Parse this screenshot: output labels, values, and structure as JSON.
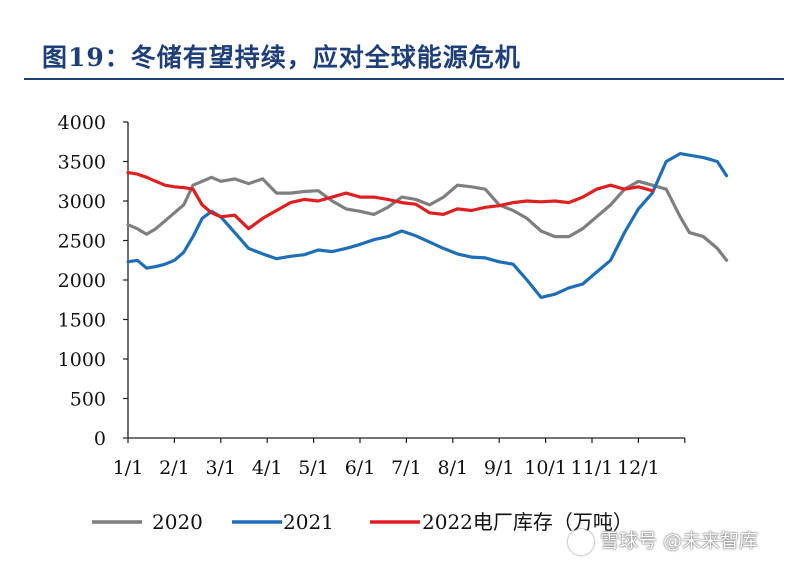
{
  "title": "图19：冬储有望持续，应对全球能源危机",
  "watermark": "雪球号 @未来智库",
  "chart_data": {
    "type": "line",
    "title": "图19：冬储有望持续，应对全球能源危机",
    "xlabel": "",
    "ylabel": "",
    "ylim": [
      0,
      4000
    ],
    "yticks": [
      0,
      500,
      1000,
      1500,
      2000,
      2500,
      3000,
      3500,
      4000
    ],
    "xticks": [
      "1/1",
      "2/1",
      "3/1",
      "4/1",
      "5/1",
      "6/1",
      "7/1",
      "8/1",
      "9/1",
      "10/1",
      "11/1",
      "12/1"
    ],
    "legend_position": "bottom",
    "grid": false,
    "series": [
      {
        "name": "2020",
        "color": "#7f7f7f",
        "x": [
          0,
          0.2,
          0.4,
          0.6,
          0.8,
          1.0,
          1.2,
          1.4,
          1.6,
          1.8,
          2.0,
          2.3,
          2.6,
          2.9,
          3.2,
          3.5,
          3.8,
          4.1,
          4.4,
          4.7,
          5.0,
          5.3,
          5.6,
          5.9,
          6.2,
          6.5,
          6.8,
          7.1,
          7.4,
          7.7,
          8.0,
          8.3,
          8.6,
          8.9,
          9.2,
          9.5,
          9.8,
          10.1,
          10.4,
          10.7,
          11.0,
          11.3,
          11.6,
          11.9
        ],
        "values": [
          2700,
          2650,
          2580,
          2650,
          2750,
          2850,
          2950,
          3200,
          3250,
          3300,
          3250,
          3280,
          3220,
          3280,
          3100,
          3100,
          3120,
          3130,
          3000,
          2900,
          2870,
          2830,
          2920,
          3050,
          3020,
          2950,
          3050,
          3200,
          3180,
          3150,
          2950,
          2880,
          2780,
          2620,
          2550,
          2550,
          2650,
          2800,
          2950,
          3150,
          3250,
          3200,
          3150,
          2800
        ],
        "tail_x": [
          12.1,
          12.4,
          12.7,
          12.9
        ],
        "tail_values": [
          2600,
          2550,
          2400,
          2250
        ]
      },
      {
        "name": "2021",
        "color": "#1f6fb8",
        "x": [
          0,
          0.2,
          0.4,
          0.6,
          0.8,
          1.0,
          1.2,
          1.4,
          1.6,
          1.8,
          2.0,
          2.3,
          2.6,
          2.9,
          3.2,
          3.5,
          3.8,
          4.1,
          4.4,
          4.7,
          5.0,
          5.3,
          5.6,
          5.9,
          6.2,
          6.5,
          6.8,
          7.1,
          7.4,
          7.7,
          8.0,
          8.3,
          8.6,
          8.9,
          9.2,
          9.5,
          9.8,
          10.1,
          10.4,
          10.7,
          11.0,
          11.3,
          11.6,
          11.9,
          12.1,
          12.4,
          12.7,
          12.9
        ],
        "values": [
          2230,
          2250,
          2150,
          2170,
          2200,
          2250,
          2350,
          2550,
          2780,
          2870,
          2800,
          2600,
          2400,
          2330,
          2270,
          2300,
          2320,
          2380,
          2360,
          2400,
          2450,
          2510,
          2550,
          2620,
          2560,
          2480,
          2400,
          2330,
          2290,
          2280,
          2230,
          2200,
          2000,
          1780,
          1820,
          1900,
          1950,
          2100,
          2250,
          2600,
          2900,
          3100,
          3500,
          3600,
          3580,
          3550,
          3500,
          3320
        ]
      },
      {
        "name": "2022电厂库存（万吨）",
        "color": "#e02020",
        "x": [
          0,
          0.2,
          0.4,
          0.6,
          0.8,
          1.0,
          1.2,
          1.4,
          1.6,
          1.8,
          2.0,
          2.3,
          2.6,
          2.9,
          3.2,
          3.5,
          3.8,
          4.1,
          4.4,
          4.7,
          5.0,
          5.3,
          5.6,
          5.9,
          6.2,
          6.5,
          6.8,
          7.1,
          7.4,
          7.7,
          8.0,
          8.3,
          8.6,
          8.9,
          9.2,
          9.5,
          9.8,
          10.1,
          10.4,
          10.7,
          11.0,
          11.3
        ],
        "values": [
          3360,
          3340,
          3300,
          3250,
          3200,
          3180,
          3170,
          3150,
          2950,
          2850,
          2800,
          2820,
          2650,
          2780,
          2880,
          2980,
          3020,
          3000,
          3050,
          3100,
          3050,
          3050,
          3020,
          2980,
          2960,
          2850,
          2830,
          2900,
          2880,
          2920,
          2940,
          2980,
          3000,
          2990,
          3000,
          2980,
          3050,
          3150,
          3200,
          3150,
          3180,
          3130
        ]
      }
    ]
  }
}
